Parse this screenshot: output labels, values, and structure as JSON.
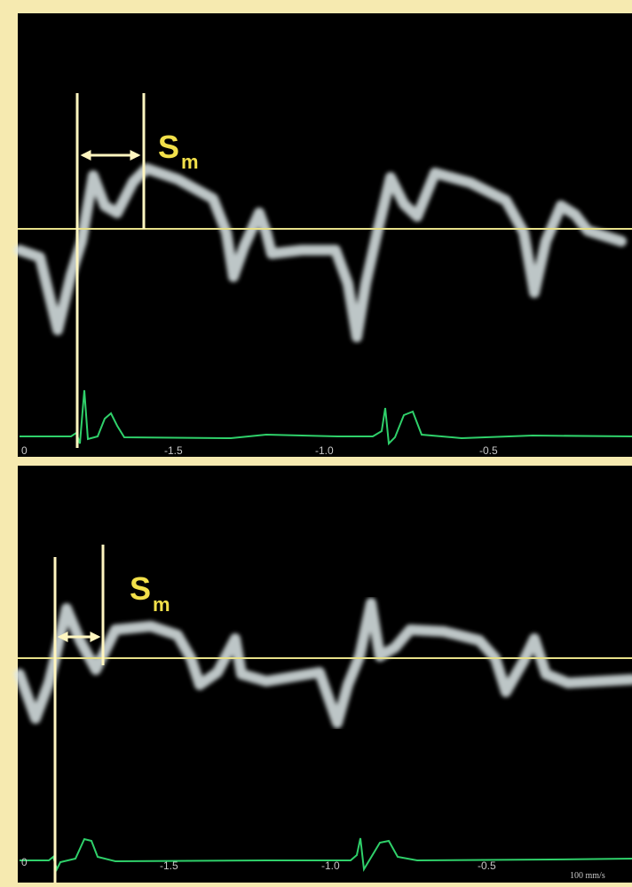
{
  "panels": [
    {
      "label": "S",
      "subscript": "m",
      "time_labels": [
        "0",
        "-1.5",
        "-1.0",
        "-0.5"
      ]
    },
    {
      "label": "S",
      "subscript": "m",
      "time_labels": [
        "0",
        "-1.5",
        "-1.0",
        "-0.5"
      ],
      "sweep_speed": "100 mm/s"
    }
  ]
}
